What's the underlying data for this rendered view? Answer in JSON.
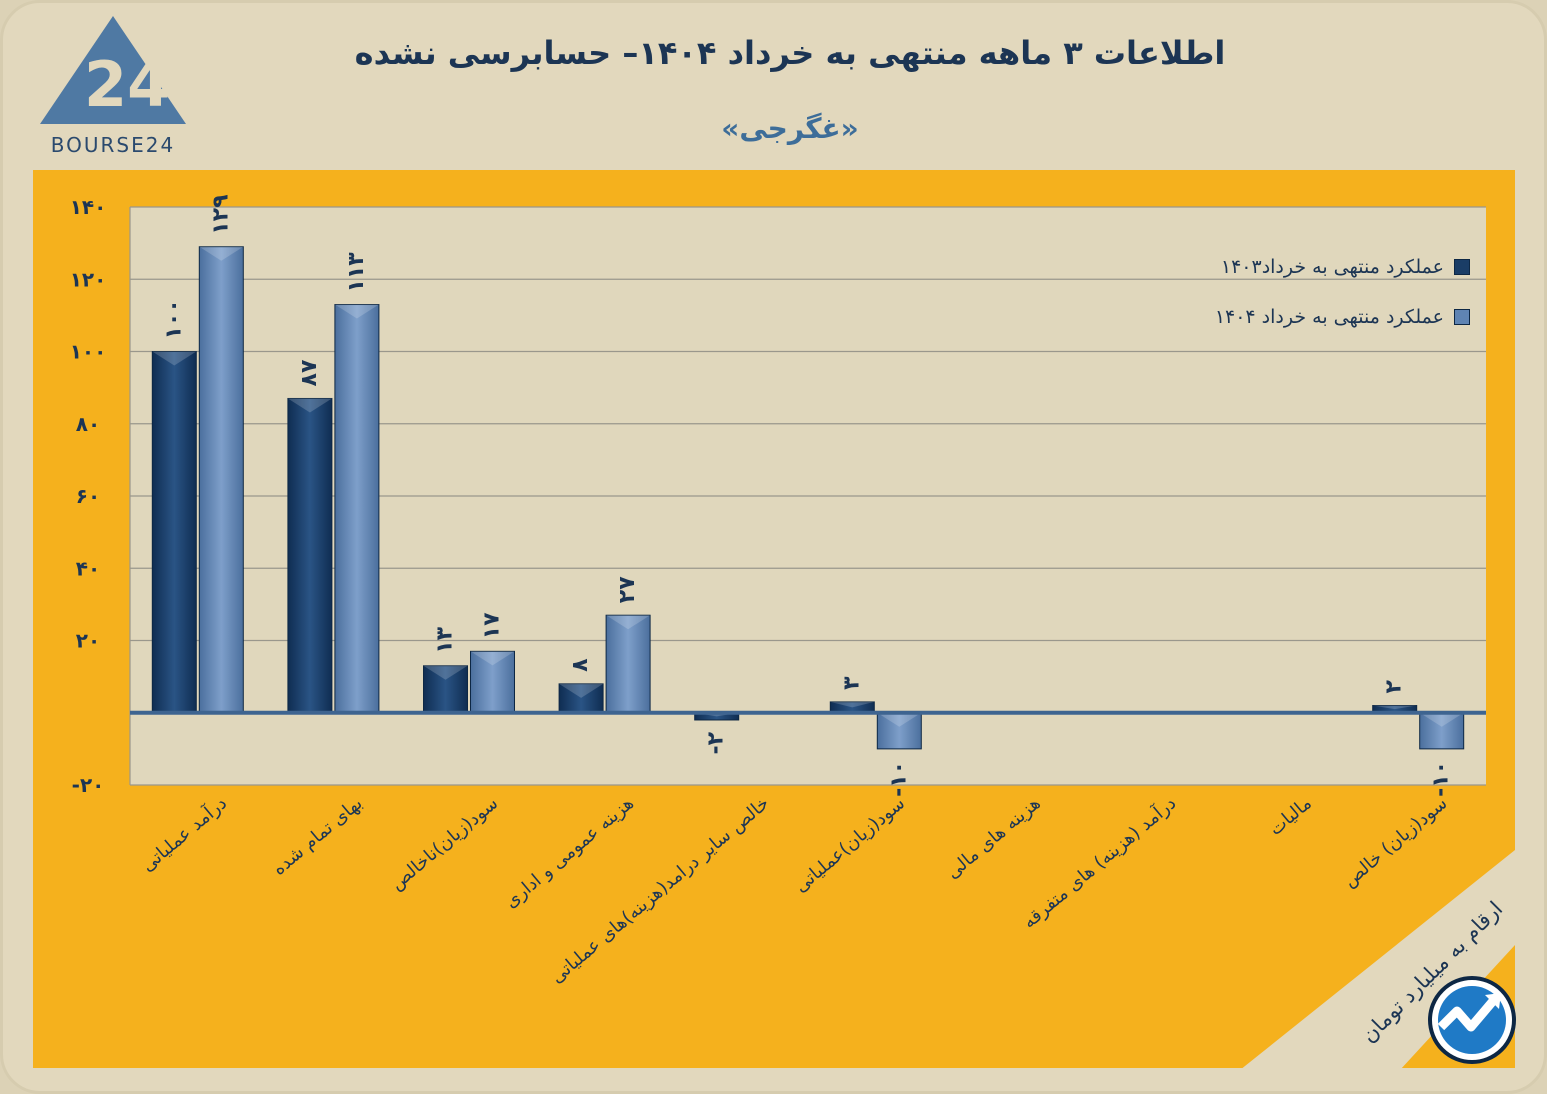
{
  "header": {
    "title": "اطلاعات ۳ ماهه منتهی به خرداد ۱۴۰۴– حسابرسی نشده",
    "subtitle": "«غگرجی»",
    "logo_text": "BOURSE24"
  },
  "note": "ارقام به میلیارد تومان",
  "colors": {
    "panel": "#f5b11d",
    "plot_background": "#e0d7bc",
    "series_1403": "#1a3d66",
    "series_1404": "#5f84b3",
    "text": "#1c3554"
  },
  "chart_data": {
    "type": "bar",
    "title": "اطلاعات ۳ ماهه منتهی به خرداد ۱۴۰۴– حسابرسی نشده",
    "subtitle": "«غگرجی»",
    "categories": [
      "درآمد عملیاتی",
      "بهای تمام شده",
      "سود(زیان)ناخالص",
      "هزینه عمومی و اداری",
      "خالص سایر درامد(هزینه)های عملیاتی",
      "سود(زیان)عملیاتی",
      "هزینه های مالی",
      "درآمد (هزینه) های متفرقه",
      "مالیات",
      "سود(زیان) خالص"
    ],
    "series": [
      {
        "name": "عملکرد منتهی به خرداد۱۴۰۳",
        "values": [
          100,
          87,
          13,
          8,
          -2,
          3,
          0,
          0,
          0,
          2
        ],
        "labels": [
          "۱۰۰",
          "۸۷",
          "۱۳",
          "۸",
          "-۲",
          "۳",
          "",
          "",
          "",
          "۲"
        ]
      },
      {
        "name": "عملکرد منتهی به خرداد ۱۴۰۴",
        "values": [
          129,
          113,
          17,
          27,
          0,
          -10,
          0,
          0,
          0,
          -10
        ],
        "labels": [
          "۱۲۹",
          "۱۱۳",
          "۱۷",
          "۲۷",
          "",
          "-۱۰",
          "",
          "",
          "",
          "-۱۰"
        ]
      }
    ],
    "yticks": [
      140,
      120,
      100,
      80,
      60,
      40,
      20,
      -20
    ],
    "ytick_labels": [
      "۱۴۰",
      "۱۲۰",
      "۱۰۰",
      "۸۰",
      "۶۰",
      "۴۰",
      "۲۰",
      "-۲۰"
    ],
    "ylim": [
      -20,
      140
    ],
    "grid": true,
    "legend_position": "top-right"
  }
}
